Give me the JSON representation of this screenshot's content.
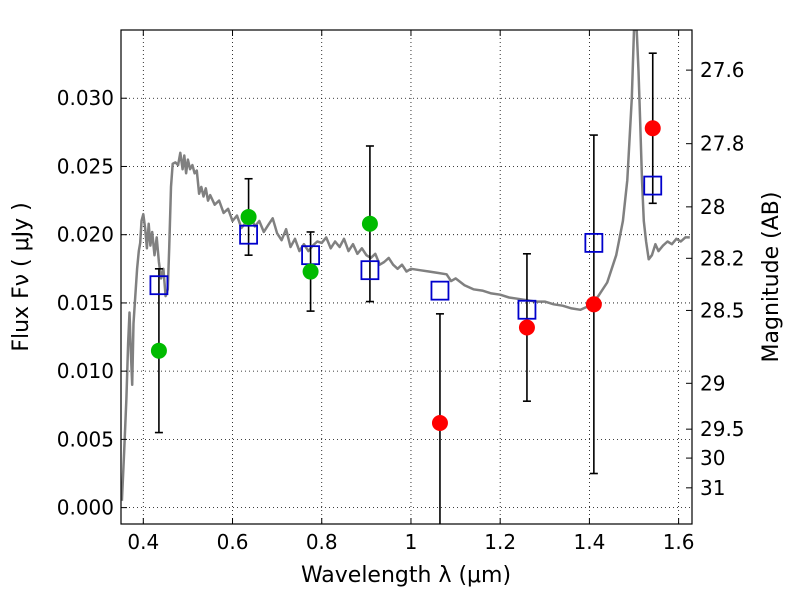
{
  "chart_data": {
    "type": "scatter",
    "xlabel": "Wavelength  λ (μm)",
    "ylabel": "Flux  Fν  ( μJy )",
    "ylabel_right": "Magnitude (AB)",
    "xlim": [
      0.35,
      1.63
    ],
    "ylim": [
      -0.0012,
      0.035
    ],
    "x_ticks": [
      0.4,
      0.6,
      0.8,
      1.0,
      1.2,
      1.4,
      1.6
    ],
    "x_tick_labels": [
      "0.4",
      "0.6",
      "0.8",
      "1",
      "1.2",
      "1.4",
      "1.6"
    ],
    "y_ticks": [
      0.0,
      0.005,
      0.01,
      0.015,
      0.02,
      0.025,
      0.03
    ],
    "y_tick_labels": [
      "0.000",
      "0.005",
      "0.010",
      "0.015",
      "0.020",
      "0.025",
      "0.030"
    ],
    "right_ticks": [
      {
        "label": "27.6",
        "flux": 0.03206
      },
      {
        "label": "27.8",
        "flux": 0.02667
      },
      {
        "label": "28",
        "flux": 0.02204
      },
      {
        "label": "28.2",
        "flux": 0.01827
      },
      {
        "label": "28.5",
        "flux": 0.01445
      },
      {
        "label": "29",
        "flux": 0.00911
      },
      {
        "label": "29.5",
        "flux": 0.00575
      },
      {
        "label": "30",
        "flux": 0.00363
      },
      {
        "label": "31",
        "flux": 0.00145
      }
    ],
    "grid": true,
    "series": [
      {
        "kind": "line",
        "color": "#808080",
        "points": [
          [
            0.352,
            0.0005
          ],
          [
            0.357,
            0.004
          ],
          [
            0.362,
            0.008
          ],
          [
            0.366,
            0.012
          ],
          [
            0.369,
            0.0143
          ],
          [
            0.372,
            0.0115
          ],
          [
            0.375,
            0.009
          ],
          [
            0.378,
            0.0135
          ],
          [
            0.382,
            0.0155
          ],
          [
            0.386,
            0.0175
          ],
          [
            0.39,
            0.0188
          ],
          [
            0.393,
            0.0194
          ],
          [
            0.396,
            0.021
          ],
          [
            0.4,
            0.0215
          ],
          [
            0.404,
            0.0205
          ],
          [
            0.408,
            0.019
          ],
          [
            0.412,
            0.0208
          ],
          [
            0.416,
            0.0192
          ],
          [
            0.42,
            0.0202
          ],
          [
            0.425,
            0.0185
          ],
          [
            0.43,
            0.0198
          ],
          [
            0.435,
            0.018
          ],
          [
            0.44,
            0.0168
          ],
          [
            0.445,
            0.0175
          ],
          [
            0.45,
            0.0155
          ],
          [
            0.455,
            0.016
          ],
          [
            0.458,
            0.019
          ],
          [
            0.462,
            0.0235
          ],
          [
            0.466,
            0.0252
          ],
          [
            0.472,
            0.0253
          ],
          [
            0.478,
            0.0251
          ],
          [
            0.483,
            0.026
          ],
          [
            0.488,
            0.0248
          ],
          [
            0.492,
            0.0258
          ],
          [
            0.496,
            0.0245
          ],
          [
            0.5,
            0.0255
          ],
          [
            0.505,
            0.0248
          ],
          [
            0.51,
            0.0251
          ],
          [
            0.515,
            0.0245
          ],
          [
            0.52,
            0.0247
          ],
          [
            0.525,
            0.023
          ],
          [
            0.53,
            0.0235
          ],
          [
            0.535,
            0.0228
          ],
          [
            0.54,
            0.0234
          ],
          [
            0.545,
            0.0225
          ],
          [
            0.55,
            0.0229
          ],
          [
            0.56,
            0.0222
          ],
          [
            0.57,
            0.0225
          ],
          [
            0.58,
            0.0216
          ],
          [
            0.59,
            0.0219
          ],
          [
            0.6,
            0.021
          ],
          [
            0.61,
            0.0214
          ],
          [
            0.62,
            0.0205
          ],
          [
            0.63,
            0.0209
          ],
          [
            0.64,
            0.0215
          ],
          [
            0.65,
            0.0206
          ],
          [
            0.66,
            0.021
          ],
          [
            0.67,
            0.0202
          ],
          [
            0.68,
            0.0207
          ],
          [
            0.69,
            0.0212
          ],
          [
            0.7,
            0.0201
          ],
          [
            0.71,
            0.0196
          ],
          [
            0.72,
            0.0204
          ],
          [
            0.73,
            0.0191
          ],
          [
            0.74,
            0.0197
          ],
          [
            0.75,
            0.0188
          ],
          [
            0.76,
            0.0193
          ],
          [
            0.77,
            0.0188
          ],
          [
            0.78,
            0.0192
          ],
          [
            0.79,
            0.0195
          ],
          [
            0.8,
            0.0194
          ],
          [
            0.81,
            0.0198
          ],
          [
            0.82,
            0.019
          ],
          [
            0.83,
            0.0195
          ],
          [
            0.84,
            0.0191
          ],
          [
            0.85,
            0.0197
          ],
          [
            0.86,
            0.0188
          ],
          [
            0.87,
            0.0193
          ],
          [
            0.88,
            0.0186
          ],
          [
            0.89,
            0.019
          ],
          [
            0.9,
            0.0185
          ],
          [
            0.91,
            0.0183
          ],
          [
            0.92,
            0.0186
          ],
          [
            0.93,
            0.0178
          ],
          [
            0.94,
            0.018
          ],
          [
            0.95,
            0.0183
          ],
          [
            0.96,
            0.0178
          ],
          [
            0.97,
            0.0175
          ],
          [
            0.98,
            0.0178
          ],
          [
            0.99,
            0.0173
          ],
          [
            1.0,
            0.0175
          ],
          [
            1.02,
            0.0174
          ],
          [
            1.04,
            0.0173
          ],
          [
            1.06,
            0.0172
          ],
          [
            1.08,
            0.0171
          ],
          [
            1.09,
            0.0166
          ],
          [
            1.1,
            0.0168
          ],
          [
            1.12,
            0.0163
          ],
          [
            1.14,
            0.016
          ],
          [
            1.16,
            0.0159
          ],
          [
            1.18,
            0.0157
          ],
          [
            1.2,
            0.0156
          ],
          [
            1.22,
            0.0154
          ],
          [
            1.24,
            0.0153
          ],
          [
            1.26,
            0.0152
          ],
          [
            1.28,
            0.0151
          ],
          [
            1.3,
            0.0151
          ],
          [
            1.32,
            0.0149
          ],
          [
            1.34,
            0.0148
          ],
          [
            1.36,
            0.0146
          ],
          [
            1.38,
            0.0145
          ],
          [
            1.4,
            0.0148
          ],
          [
            1.42,
            0.0155
          ],
          [
            1.44,
            0.0165
          ],
          [
            1.46,
            0.0185
          ],
          [
            1.475,
            0.021
          ],
          [
            1.485,
            0.024
          ],
          [
            1.495,
            0.03
          ],
          [
            1.5,
            0.035
          ],
          [
            1.506,
            0.035
          ],
          [
            1.51,
            0.032
          ],
          [
            1.514,
            0.028
          ],
          [
            1.518,
            0.024
          ],
          [
            1.522,
            0.021
          ],
          [
            1.527,
            0.0195
          ],
          [
            1.533,
            0.0182
          ],
          [
            1.54,
            0.0185
          ],
          [
            1.548,
            0.0193
          ],
          [
            1.555,
            0.0188
          ],
          [
            1.565,
            0.0192
          ],
          [
            1.575,
            0.0195
          ],
          [
            1.585,
            0.0193
          ],
          [
            1.595,
            0.0197
          ],
          [
            1.605,
            0.0195
          ],
          [
            1.615,
            0.0198
          ],
          [
            1.625,
            0.0198
          ]
        ]
      },
      {
        "kind": "model",
        "marker": "open-square",
        "color": "#0000cc",
        "x": [
          0.435,
          0.636,
          0.775,
          0.908,
          1.065,
          1.26,
          1.41,
          1.542
        ],
        "y": [
          0.0163,
          0.02,
          0.0185,
          0.0174,
          0.0159,
          0.0145,
          0.0194,
          0.0236
        ]
      },
      {
        "kind": "detection",
        "marker": "filled-circle",
        "color": "#00bb00",
        "x": [
          0.435,
          0.636,
          0.775,
          0.908
        ],
        "y": [
          0.0115,
          0.0213,
          0.0173,
          0.0208
        ],
        "err": [
          0.006,
          0.0028,
          0.0029,
          0.0057
        ]
      },
      {
        "kind": "upper-limit",
        "marker": "filled-circle",
        "color": "#ff0000",
        "x": [
          1.065,
          1.26,
          1.41,
          1.542
        ],
        "y": [
          0.0062,
          0.0132,
          0.0149,
          0.0278
        ],
        "err": [
          0.008,
          0.0054,
          0.0124,
          0.0055
        ]
      }
    ]
  }
}
